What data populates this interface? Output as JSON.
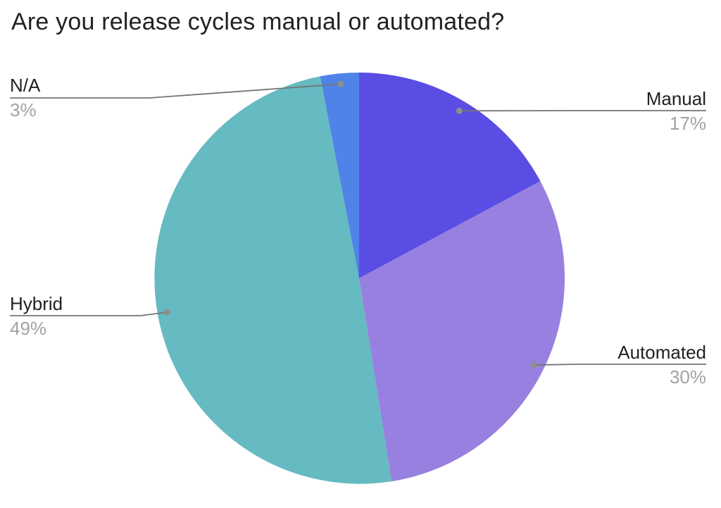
{
  "title": "Are you release cycles manual or automated?",
  "chart_data": {
    "type": "pie",
    "title": "Are you release cycles manual or automated?",
    "categories": [
      "Manual",
      "Automated",
      "Hybrid",
      "N/A"
    ],
    "values": [
      17,
      30,
      49,
      3
    ],
    "display_values": [
      "17%",
      "30%",
      "49%",
      "3%"
    ],
    "unit": "%",
    "colors": [
      "#5a4de4",
      "#9880e0",
      "#66bac2",
      "#4f83e8"
    ],
    "start_angle_deg": 0,
    "direction": "clockwise",
    "legend_position": "callout-labels",
    "label_color": "#212121",
    "value_color": "#a2a2a2",
    "leader_line_color": "#757575",
    "anchor_dot_color": "#8f8f8f",
    "background_color": "#ffffff"
  }
}
